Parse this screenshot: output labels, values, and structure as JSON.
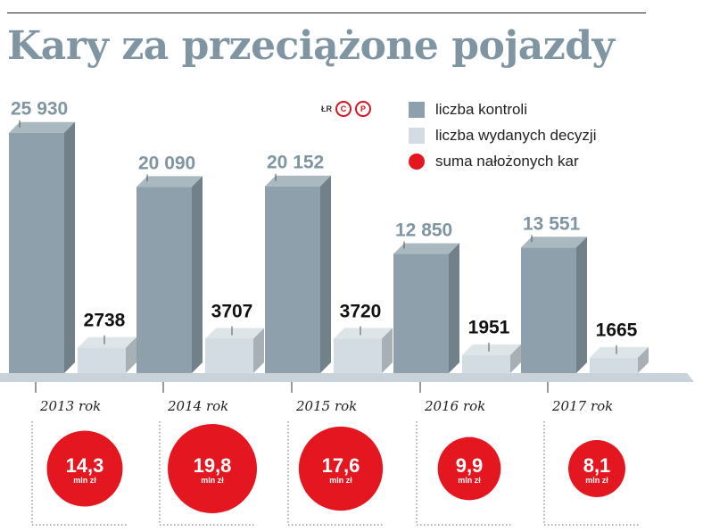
{
  "title": "Kary za przeciążone pojazdy",
  "credit": {
    "initials": "ŁR",
    "marks": [
      "C",
      "P"
    ]
  },
  "legend": [
    {
      "label": "liczba kontroli",
      "color": "#8da0ab",
      "shape": "square"
    },
    {
      "label": "liczba wydanych decyzji",
      "color": "#d3dce2",
      "shape": "square"
    },
    {
      "label": "suma nałożonych kar",
      "color": "#e4161f",
      "shape": "circle"
    }
  ],
  "chart_data": {
    "type": "bar",
    "categories": [
      "2013 rok",
      "2014 rok",
      "2015 rok",
      "2016 rok",
      "2017 rok"
    ],
    "series": [
      {
        "name": "liczba kontroli",
        "values": [
          25930,
          20090,
          20152,
          12850,
          13551
        ],
        "labels": [
          "25 930",
          "20 090",
          "20 152",
          "12 850",
          "13 551"
        ]
      },
      {
        "name": "liczba wydanych decyzji",
        "values": [
          2738,
          3707,
          3720,
          1951,
          1665
        ],
        "labels": [
          "2738",
          "3707",
          "3720",
          "1951",
          "1665"
        ]
      },
      {
        "name": "suma nałożonych kar",
        "values": [
          14.3,
          19.8,
          17.6,
          9.9,
          8.1
        ],
        "labels": [
          "14,3",
          "19,8",
          "17,6",
          "9,9",
          "8,1"
        ],
        "unit": "mln zł"
      }
    ],
    "ylim": [
      0,
      26000
    ],
    "grid": false,
    "legend_position": "top-right"
  }
}
